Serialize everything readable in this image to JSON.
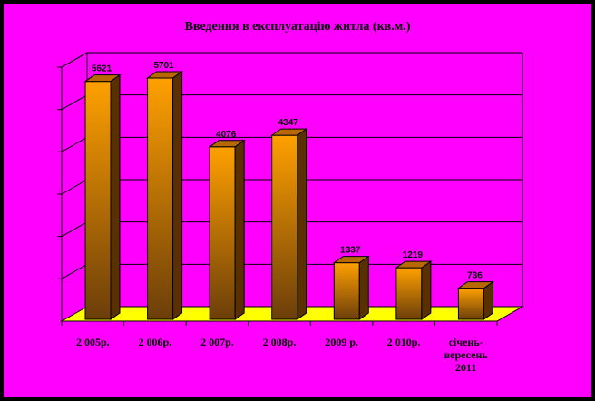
{
  "chart_data": {
    "type": "bar",
    "title": "Введення в експлуатацію житла (кв.м.)",
    "categories": [
      [
        "2 005р."
      ],
      [
        "2 006р."
      ],
      [
        "2 007р."
      ],
      [
        "2 008р."
      ],
      [
        "2009 р."
      ],
      [
        "2 010р."
      ],
      [
        "січень-",
        "вересень",
        "2011"
      ]
    ],
    "values": [
      5621,
      5701,
      4076,
      4347,
      1337,
      1219,
      736
    ],
    "value_labels": [
      "5621",
      "5701",
      "4076",
      "4347",
      "1337",
      "1219",
      "736"
    ],
    "ylim": [
      0,
      6000
    ],
    "gridlines": true,
    "style": "3d"
  },
  "colors": {
    "background": "#FF00FF",
    "frame": "#000000",
    "floor": "#FFFF00",
    "bar_top": "#FFA000",
    "bar_bottom": "#6B3E0A",
    "bar_side": "#5A3000",
    "bar_cap": "#B86800"
  }
}
